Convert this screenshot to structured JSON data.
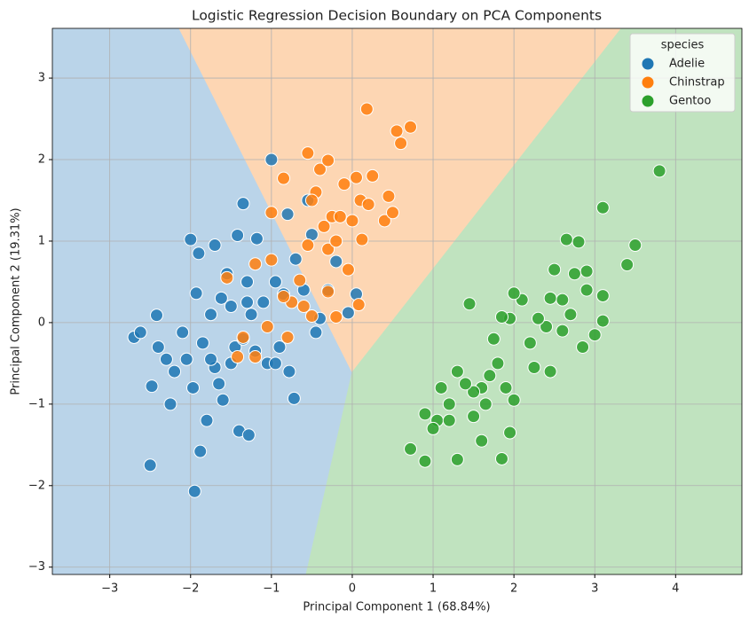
{
  "chart_data": {
    "type": "scatter",
    "title": "Logistic Regression Decision Boundary on PCA Components",
    "xlabel": "Principal Component 1 (68.84%)",
    "ylabel": "Principal Component 2 (19.31%)",
    "legend_title": "species",
    "legend_position": "upper right",
    "grid": true,
    "xlim": [
      -3.71,
      4.82
    ],
    "ylim": [
      -3.09,
      3.61
    ],
    "xticks": [
      {
        "value": -3,
        "label": "−3"
      },
      {
        "value": -2,
        "label": "−2"
      },
      {
        "value": -1,
        "label": "−1"
      },
      0,
      1,
      2,
      3,
      4
    ],
    "yticks": [
      {
        "value": -3,
        "label": "−3"
      },
      {
        "value": -2,
        "label": "−2"
      },
      {
        "value": -1,
        "label": "−1"
      },
      0,
      1,
      2,
      3
    ],
    "series": [
      {
        "name": "Adelie",
        "color": "#1f77b4",
        "region_color": "#bad4e9",
        "region": {
          "x": [
            -3.71,
            -2.14,
            0,
            -0.57,
            -3.71
          ],
          "y": [
            3.61,
            3.61,
            -0.61,
            -3.09,
            -3.09
          ]
        },
        "x": [
          -2.7,
          -2.62,
          -2.5,
          -2.42,
          -2.4,
          -2.3,
          -2.25,
          -2.2,
          -2.1,
          -2.05,
          -2,
          -1.97,
          -1.95,
          -1.93,
          -1.9,
          -1.88,
          -1.85,
          -1.8,
          -1.75,
          -1.7,
          -1.65,
          -1.62,
          -1.6,
          -1.55,
          -1.5,
          -1.45,
          -1.42,
          -1.4,
          -1.35,
          -1.3,
          -1.28,
          -1.25,
          -1.2,
          -1.18,
          -1.1,
          -1.05,
          -1,
          -0.95,
          -0.9,
          -0.85,
          -0.8,
          -0.78,
          -0.7,
          -0.6,
          -0.55,
          -0.5,
          -0.45,
          -0.3,
          -0.2,
          0.05,
          -0.72,
          -1.5,
          -1.7,
          -2.48,
          -1.35,
          -0.95,
          -0.4,
          -0.05,
          -1.75,
          -1.3
        ],
        "values": [
          -0.18,
          -0.12,
          -1.75,
          0.09,
          -0.3,
          -0.45,
          -1.0,
          -0.6,
          -0.12,
          -0.45,
          1.02,
          -0.8,
          -2.07,
          0.36,
          0.85,
          -1.58,
          -0.25,
          -1.2,
          0.1,
          -0.55,
          -0.75,
          0.3,
          -0.95,
          0.6,
          0.2,
          -0.3,
          1.07,
          -1.33,
          -0.2,
          0.5,
          -1.38,
          0.1,
          -0.35,
          1.03,
          0.25,
          -0.5,
          2.0,
          0.5,
          -0.3,
          0.35,
          1.33,
          -0.6,
          0.78,
          0.4,
          1.5,
          1.08,
          -0.12,
          0.4,
          0.75,
          0.35,
          -0.93,
          -0.5,
          0.95,
          -0.78,
          1.46,
          -0.5,
          0.05,
          0.12,
          -0.45,
          0.25
        ]
      },
      {
        "name": "Chinstrap",
        "color": "#ff7f0e",
        "region_color": "#fdd6b3",
        "region": {
          "x": [
            -2.14,
            3.33,
            0
          ],
          "y": [
            3.61,
            3.61,
            -0.61
          ]
        },
        "x": [
          0.18,
          0.55,
          0.6,
          0.72,
          -0.55,
          -1.0,
          -0.85,
          -0.4,
          -0.3,
          -0.45,
          -0.25,
          -0.1,
          0.05,
          0.25,
          0.1,
          0.2,
          0.4,
          0.45,
          0.5,
          -0.55,
          -0.3,
          -0.2,
          -0.05,
          0.12,
          0.08,
          -0.3,
          -0.5,
          -0.65,
          -0.75,
          -0.85,
          -1.0,
          -1.2,
          -1.05,
          -1.35,
          -1.42,
          -1.2,
          -1.55,
          -0.8,
          -0.6,
          -0.2,
          0.0,
          -0.35,
          -0.15,
          -0.5
        ],
        "values": [
          2.62,
          2.35,
          2.2,
          2.4,
          2.08,
          1.35,
          1.77,
          1.88,
          1.99,
          1.6,
          1.3,
          1.7,
          1.78,
          1.8,
          1.5,
          1.45,
          1.25,
          1.55,
          1.35,
          0.95,
          0.9,
          1.0,
          0.65,
          1.02,
          0.22,
          0.38,
          0.08,
          0.52,
          0.25,
          0.32,
          0.77,
          0.72,
          -0.05,
          -0.18,
          -0.42,
          -0.42,
          0.55,
          -0.18,
          0.2,
          0.07,
          1.25,
          1.18,
          1.3,
          1.5
        ]
      },
      {
        "name": "Gentoo",
        "color": "#2ca02c",
        "region_color": "#c0e3bf",
        "region": {
          "x": [
            0,
            3.33,
            4.82,
            4.82,
            -0.57
          ],
          "y": [
            -0.61,
            3.61,
            3.61,
            -3.09,
            -3.09
          ]
        },
        "x": [
          3.8,
          3.1,
          3.5,
          3.4,
          3.1,
          3.1,
          2.9,
          2.8,
          2.65,
          2.75,
          2.9,
          2.6,
          2.5,
          2.45,
          2.4,
          2.3,
          2.2,
          2.1,
          2.0,
          1.95,
          1.85,
          1.75,
          1.8,
          1.7,
          1.6,
          1.5,
          1.4,
          1.45,
          1.3,
          1.2,
          1.1,
          1.05,
          1.0,
          0.9,
          0.9,
          0.72,
          1.3,
          1.85,
          1.95,
          1.6,
          1.5,
          2.0,
          2.25,
          2.45,
          2.6,
          2.85,
          3.0,
          2.7,
          1.9,
          1.65,
          1.2
        ],
        "values": [
          1.86,
          1.41,
          0.95,
          0.71,
          0.33,
          0.02,
          0.63,
          0.99,
          1.02,
          0.6,
          0.4,
          0.28,
          0.65,
          0.3,
          -0.05,
          0.05,
          -0.25,
          0.28,
          0.36,
          0.05,
          0.07,
          -0.2,
          -0.5,
          -0.65,
          -0.8,
          -0.85,
          -0.75,
          0.23,
          -0.6,
          -1.0,
          -0.8,
          -1.2,
          -1.3,
          -1.12,
          -1.7,
          -1.55,
          -1.68,
          -1.67,
          -1.35,
          -1.45,
          -1.15,
          -0.95,
          -0.55,
          -0.6,
          -0.1,
          -0.3,
          -0.15,
          0.1,
          -0.8,
          -1.0,
          -1.2
        ]
      }
    ]
  }
}
